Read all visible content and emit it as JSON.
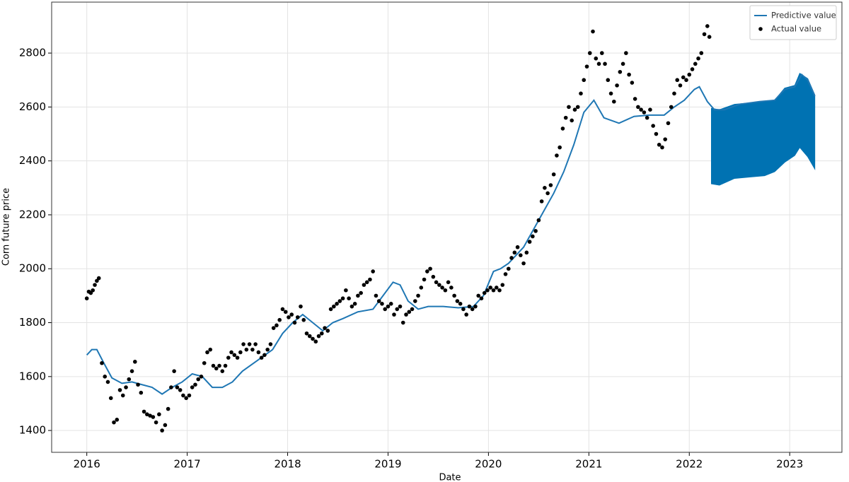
{
  "chart_data": {
    "type": "line",
    "x_label": "Date",
    "y_label": "Corn future price",
    "xlim": [
      2015.65,
      2023.52
    ],
    "ylim": [
      1319,
      2989
    ],
    "xticks": [
      2016,
      2017,
      2018,
      2019,
      2020,
      2021,
      2022,
      2023
    ],
    "yticks": [
      1400,
      1600,
      1800,
      2000,
      2200,
      2400,
      2600,
      2800
    ],
    "grid": true,
    "legend": "upper right",
    "series": [
      {
        "name": "Predictive value",
        "kind": "line",
        "color": "#1f77b4",
        "x": [
          2016.0,
          2016.05,
          2016.1,
          2016.17,
          2016.25,
          2016.35,
          2016.45,
          2016.55,
          2016.65,
          2016.75,
          2016.85,
          2016.95,
          2017.05,
          2017.15,
          2017.25,
          2017.35,
          2017.45,
          2017.55,
          2017.7,
          2017.85,
          2017.95,
          2018.05,
          2018.15,
          2018.25,
          2018.35,
          2018.45,
          2018.55,
          2018.7,
          2018.85,
          2018.95,
          2019.05,
          2019.12,
          2019.2,
          2019.3,
          2019.4,
          2019.55,
          2019.7,
          2019.85,
          2019.95,
          2020.05,
          2020.12,
          2020.2,
          2020.35,
          2020.5,
          2020.65,
          2020.75,
          2020.85,
          2020.95,
          2021.05,
          2021.15,
          2021.3,
          2021.45,
          2021.6,
          2021.75,
          2021.85,
          2021.95,
          2022.05,
          2022.1,
          2022.18,
          2022.25,
          2022.35,
          2022.5,
          2022.7,
          2022.85,
          2022.95,
          2023.05,
          2023.12,
          2023.18,
          2023.25
        ],
        "values": [
          1680,
          1700,
          1700,
          1650,
          1595,
          1575,
          1580,
          1570,
          1560,
          1535,
          1560,
          1580,
          1610,
          1600,
          1560,
          1560,
          1580,
          1620,
          1660,
          1700,
          1760,
          1800,
          1830,
          1800,
          1770,
          1800,
          1815,
          1840,
          1850,
          1900,
          1950,
          1940,
          1880,
          1850,
          1860,
          1860,
          1855,
          1860,
          1900,
          1990,
          2000,
          2020,
          2080,
          2180,
          2280,
          2360,
          2460,
          2580,
          2625,
          2560,
          2540,
          2565,
          2570,
          2570,
          2600,
          2625,
          2665,
          2675,
          2620,
          2590,
          2590,
          2610,
          2620,
          2625,
          2665,
          2675,
          2720,
          2700,
          2640
        ]
      },
      {
        "name": "Actual value",
        "kind": "scatter",
        "color": "#000000",
        "x": [
          2016.0,
          2016.02,
          2016.04,
          2016.06,
          2016.08,
          2016.1,
          2016.12,
          2016.15,
          2016.18,
          2016.21,
          2016.24,
          2016.27,
          2016.3,
          2016.33,
          2016.36,
          2016.39,
          2016.42,
          2016.45,
          2016.48,
          2016.51,
          2016.54,
          2016.57,
          2016.6,
          2016.63,
          2016.66,
          2016.69,
          2016.72,
          2016.75,
          2016.78,
          2016.81,
          2016.84,
          2016.87,
          2016.9,
          2016.93,
          2016.96,
          2016.99,
          2017.02,
          2017.05,
          2017.08,
          2017.11,
          2017.14,
          2017.17,
          2017.2,
          2017.23,
          2017.26,
          2017.29,
          2017.32,
          2017.35,
          2017.38,
          2017.41,
          2017.44,
          2017.47,
          2017.5,
          2017.53,
          2017.56,
          2017.59,
          2017.62,
          2017.65,
          2017.68,
          2017.71,
          2017.74,
          2017.77,
          2017.8,
          2017.83,
          2017.86,
          2017.89,
          2017.92,
          2017.95,
          2017.98,
          2018.01,
          2018.04,
          2018.07,
          2018.1,
          2018.13,
          2018.16,
          2018.19,
          2018.22,
          2018.25,
          2018.28,
          2018.31,
          2018.34,
          2018.37,
          2018.4,
          2018.43,
          2018.46,
          2018.49,
          2018.52,
          2018.55,
          2018.58,
          2018.61,
          2018.64,
          2018.67,
          2018.7,
          2018.73,
          2018.76,
          2018.79,
          2018.82,
          2018.85,
          2018.88,
          2018.91,
          2018.94,
          2018.97,
          2019.0,
          2019.03,
          2019.06,
          2019.09,
          2019.12,
          2019.15,
          2019.18,
          2019.21,
          2019.24,
          2019.27,
          2019.3,
          2019.33,
          2019.36,
          2019.39,
          2019.42,
          2019.45,
          2019.48,
          2019.51,
          2019.54,
          2019.57,
          2019.6,
          2019.63,
          2019.66,
          2019.69,
          2019.72,
          2019.75,
          2019.78,
          2019.81,
          2019.84,
          2019.87,
          2019.9,
          2019.93,
          2019.96,
          2019.99,
          2020.02,
          2020.05,
          2020.08,
          2020.11,
          2020.14,
          2020.17,
          2020.2,
          2020.23,
          2020.26,
          2020.29,
          2020.32,
          2020.35,
          2020.38,
          2020.41,
          2020.44,
          2020.47,
          2020.5,
          2020.53,
          2020.56,
          2020.59,
          2020.62,
          2020.65,
          2020.68,
          2020.71,
          2020.74,
          2020.77,
          2020.8,
          2020.83,
          2020.86,
          2020.89,
          2020.92,
          2020.95,
          2020.98,
          2021.01,
          2021.04,
          2021.07,
          2021.1,
          2021.13,
          2021.16,
          2021.19,
          2021.22,
          2021.25,
          2021.28,
          2021.31,
          2021.34,
          2021.37,
          2021.4,
          2021.43,
          2021.46,
          2021.49,
          2021.52,
          2021.55,
          2021.58,
          2021.61,
          2021.64,
          2021.67,
          2021.7,
          2021.73,
          2021.76,
          2021.79,
          2021.82,
          2021.85,
          2021.88,
          2021.91,
          2021.94,
          2021.97,
          2022.0,
          2022.03,
          2022.06,
          2022.09,
          2022.12,
          2022.15,
          2022.18,
          2022.2
        ],
        "values": [
          1890,
          1915,
          1910,
          1920,
          1940,
          1955,
          1965,
          1650,
          1600,
          1580,
          1520,
          1430,
          1440,
          1550,
          1530,
          1560,
          1590,
          1620,
          1655,
          1570,
          1540,
          1470,
          1460,
          1455,
          1450,
          1430,
          1460,
          1400,
          1420,
          1480,
          1560,
          1620,
          1560,
          1550,
          1530,
          1520,
          1530,
          1560,
          1570,
          1590,
          1600,
          1650,
          1690,
          1700,
          1640,
          1630,
          1640,
          1620,
          1640,
          1670,
          1690,
          1680,
          1670,
          1690,
          1720,
          1700,
          1720,
          1700,
          1720,
          1690,
          1670,
          1680,
          1700,
          1720,
          1780,
          1790,
          1810,
          1850,
          1840,
          1820,
          1830,
          1800,
          1820,
          1860,
          1810,
          1760,
          1750,
          1740,
          1730,
          1750,
          1760,
          1780,
          1770,
          1850,
          1860,
          1870,
          1880,
          1890,
          1920,
          1890,
          1860,
          1870,
          1900,
          1910,
          1940,
          1950,
          1960,
          1990,
          1900,
          1880,
          1870,
          1850,
          1860,
          1870,
          1830,
          1850,
          1860,
          1800,
          1830,
          1840,
          1850,
          1880,
          1900,
          1930,
          1960,
          1990,
          2000,
          1970,
          1950,
          1940,
          1930,
          1920,
          1950,
          1930,
          1900,
          1880,
          1870,
          1850,
          1830,
          1860,
          1850,
          1860,
          1900,
          1890,
          1910,
          1920,
          1930,
          1920,
          1930,
          1920,
          1940,
          1980,
          2000,
          2040,
          2060,
          2080,
          2050,
          2020,
          2060,
          2100,
          2120,
          2140,
          2180,
          2250,
          2300,
          2280,
          2310,
          2350,
          2420,
          2450,
          2520,
          2560,
          2600,
          2550,
          2590,
          2600,
          2650,
          2700,
          2750,
          2800,
          2880,
          2780,
          2760,
          2800,
          2760,
          2700,
          2650,
          2620,
          2680,
          2730,
          2760,
          2800,
          2720,
          2690,
          2630,
          2600,
          2590,
          2580,
          2560,
          2590,
          2530,
          2500,
          2460,
          2450,
          2480,
          2540,
          2600,
          2650,
          2700,
          2680,
          2710,
          2700,
          2720,
          2740,
          2760,
          2780,
          2800,
          2870,
          2900,
          2860
        ]
      }
    ],
    "uncertainty": {
      "color": "#0072b2",
      "x": [
        2022.22,
        2022.3,
        2022.45,
        2022.6,
        2022.75,
        2022.85,
        2022.95,
        2023.05,
        2023.1,
        2023.18,
        2023.25
      ],
      "lower": [
        2315,
        2310,
        2335,
        2340,
        2345,
        2360,
        2395,
        2420,
        2450,
        2415,
        2370
      ],
      "upper": [
        2595,
        2590,
        2610,
        2615,
        2620,
        2625,
        2670,
        2680,
        2725,
        2705,
        2645
      ]
    }
  }
}
